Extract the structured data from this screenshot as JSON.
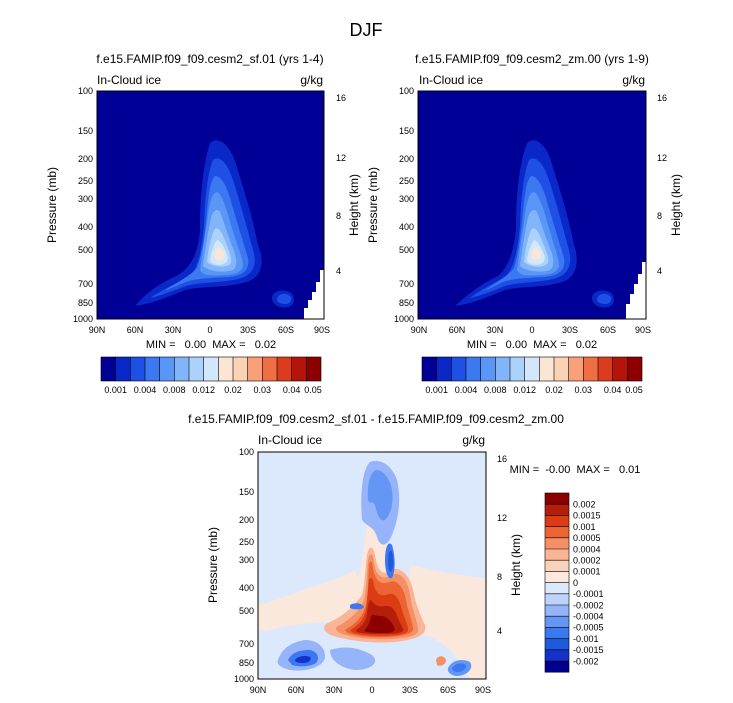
{
  "figure_title": "DJF",
  "colors": {
    "base_palette": [
      "#000096",
      "#0a28c8",
      "#1e50e6",
      "#3c78f0",
      "#5a96f5",
      "#82b4fa",
      "#aad2fa",
      "#d2e6fc",
      "#fae6d2",
      "#fad2b4",
      "#faa078",
      "#f06e46",
      "#dc3c1e",
      "#b4140a",
      "#8c0000"
    ],
    "diff_palette": [
      "#00008c",
      "#0a1ea0",
      "#1432c8",
      "#1e5adc",
      "#3c78f0",
      "#6496f5",
      "#96b4fa",
      "#bed2fc",
      "#dce8fc",
      "#fae8dc",
      "#fad2bc",
      "#fab496",
      "#f59064",
      "#eb6432",
      "#dc3c14",
      "#b41e0a",
      "#8c0000"
    ]
  },
  "chart_data": [
    {
      "type": "heatmap",
      "title": "f.e15.FAMIP.f09_f09.cesm2_sf.01 (yrs 1-4)",
      "left_label": "In-Cloud ice",
      "right_label": "g/kg",
      "ylabel": "Pressure (mb)",
      "ylabel_right": "Height (km)",
      "x_ticks": [
        "90N",
        "60N",
        "30N",
        "0",
        "30S",
        "60S",
        "90S"
      ],
      "y_ticks": [
        "100",
        "150",
        "200",
        "250",
        "300",
        "400",
        "500",
        "700",
        "850",
        "1000"
      ],
      "y_ticks_right": [
        "16",
        "12",
        "8",
        "4"
      ],
      "min_max": "MIN =   0.00  MAX =   0.02",
      "colorbar_labels": [
        "0.001",
        "0.004",
        "0.008",
        "0.012",
        "0.02",
        "0.03",
        "0.04",
        "0.05"
      ]
    },
    {
      "type": "heatmap",
      "title": "f.e15.FAMIP.f09_f09.cesm2_zm.00 (yrs 1-9)",
      "left_label": "In-Cloud ice",
      "right_label": "g/kg",
      "ylabel": "Pressure (mb)",
      "ylabel_right": "Height (km)",
      "x_ticks": [
        "90N",
        "60N",
        "30N",
        "0",
        "30S",
        "60S",
        "90S"
      ],
      "y_ticks": [
        "100",
        "150",
        "200",
        "250",
        "300",
        "400",
        "500",
        "700",
        "850",
        "1000"
      ],
      "y_ticks_right": [
        "16",
        "12",
        "8",
        "4"
      ],
      "min_max": "MIN =   0.00  MAX =   0.02",
      "colorbar_labels": [
        "0.001",
        "0.004",
        "0.008",
        "0.012",
        "0.02",
        "0.03",
        "0.04",
        "0.05"
      ]
    },
    {
      "type": "heatmap",
      "title": "f.e15.FAMIP.f09_f09.cesm2_sf.01 - f.e15.FAMIP.f09_f09.cesm2_zm.00",
      "left_label": "In-Cloud ice",
      "right_label": "g/kg",
      "ylabel": "Pressure (mb)",
      "ylabel_right": "Height (km)",
      "x_ticks": [
        "90N",
        "60N",
        "30N",
        "0",
        "30S",
        "60S",
        "90S"
      ],
      "y_ticks": [
        "100",
        "150",
        "200",
        "250",
        "300",
        "400",
        "500",
        "700",
        "850",
        "1000"
      ],
      "y_ticks_right": [
        "16",
        "12",
        "8",
        "4"
      ],
      "min_max": "MIN =  -0.00  MAX =   0.01",
      "colorbar_labels": [
        "0.002",
        "0.0015",
        "0.001",
        "0.0005",
        "0.0004",
        "0.0002",
        "0.0001",
        "0",
        "-0.0001",
        "-0.0002",
        "-0.0004",
        "-0.0005",
        "-0.001",
        "-0.0015",
        "-0.002"
      ]
    }
  ]
}
